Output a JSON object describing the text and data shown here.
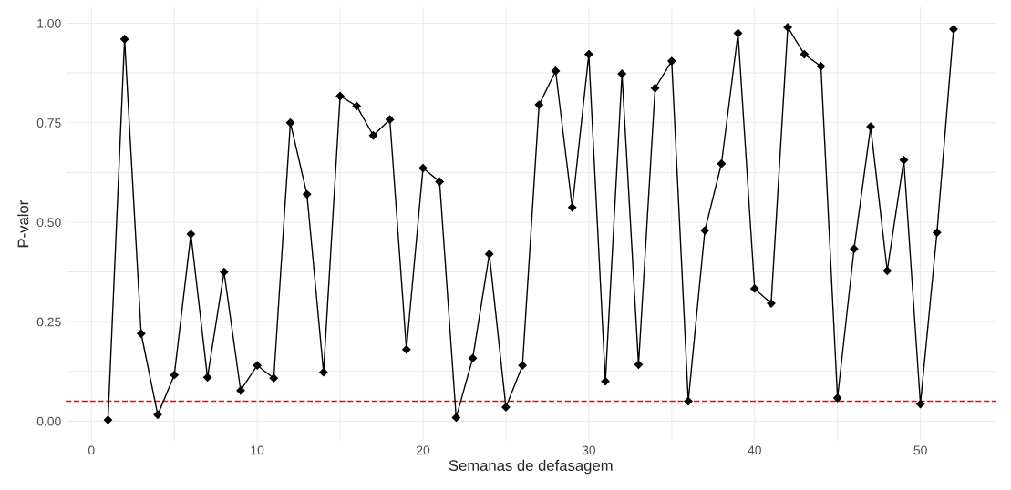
{
  "chart_data": {
    "type": "line",
    "xlabel": "Semanas de defasagem",
    "ylabel": "P-valor",
    "x": [
      1,
      2,
      3,
      4,
      5,
      6,
      7,
      8,
      9,
      10,
      11,
      12,
      13,
      14,
      15,
      16,
      17,
      18,
      19,
      20,
      21,
      22,
      23,
      24,
      25,
      26,
      27,
      28,
      29,
      30,
      31,
      32,
      33,
      34,
      35,
      36,
      37,
      38,
      39,
      40,
      41,
      42,
      43,
      44,
      45,
      46,
      47,
      48,
      49,
      50,
      51,
      52
    ],
    "series": [
      {
        "color": "#000000",
        "values": [
          0.003,
          0.96,
          0.22,
          0.016,
          0.116,
          0.47,
          0.11,
          0.375,
          0.077,
          0.14,
          0.108,
          0.75,
          0.57,
          0.123,
          0.817,
          0.792,
          0.718,
          0.758,
          0.18,
          0.636,
          0.602,
          0.009,
          0.158,
          0.42,
          0.035,
          0.14,
          0.795,
          0.88,
          0.537,
          0.922,
          0.1,
          0.873,
          0.142,
          0.837,
          0.905,
          0.05,
          0.479,
          0.647,
          0.975,
          0.333,
          0.296,
          0.99,
          0.922,
          0.892,
          0.058,
          0.433,
          0.74,
          0.378,
          0.656,
          0.043,
          0.474,
          0.985
        ]
      }
    ],
    "xlim": [
      -1.55,
      54.55
    ],
    "ylim": [
      -0.05,
      1.04
    ],
    "xticks": [
      0,
      10,
      20,
      30,
      40,
      50
    ],
    "yticks": [
      {
        "value": 0,
        "label": "0.00"
      },
      {
        "value": 0.25,
        "label": "0.25"
      },
      {
        "value": 0.5,
        "label": "0.50"
      },
      {
        "value": 0.75,
        "label": "0.75"
      },
      {
        "value": 1,
        "label": "1.00"
      }
    ],
    "ref_lines": [
      {
        "axis": "y",
        "value": 0.05,
        "color": "#ff0000",
        "line_style": "dashed"
      }
    ],
    "grid": true,
    "marker": "diamond",
    "line_style": "solid",
    "legend": false
  }
}
